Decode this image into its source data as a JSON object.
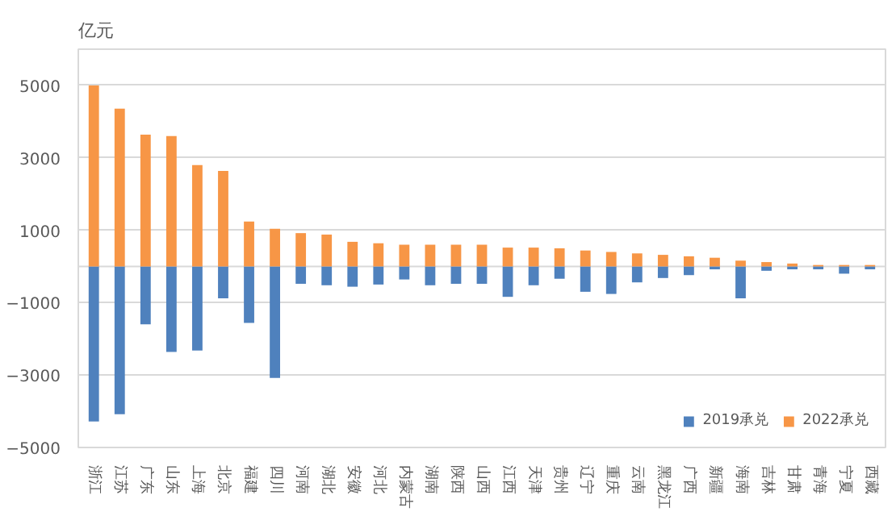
{
  "chart_data": {
    "type": "bar",
    "ylabel": "亿元",
    "categories": [
      "浙江",
      "江苏",
      "广东",
      "山东",
      "上海",
      "北京",
      "福建",
      "四川",
      "河南",
      "湖北",
      "安徽",
      "河北",
      "内蒙古",
      "湖南",
      "陕西",
      "山西",
      "江西",
      "天津",
      "贵州",
      "辽宁",
      "重庆",
      "云南",
      "黑龙江",
      "广西",
      "新疆",
      "海南",
      "吉林",
      "甘肃",
      "青海",
      "宁夏",
      "西藏"
    ],
    "series": [
      {
        "name": "2019承兑",
        "color": "#4f81bd",
        "values": [
          -4280,
          -4080,
          -1600,
          -2360,
          -2320,
          -880,
          -1560,
          -3080,
          -480,
          -520,
          -560,
          -500,
          -360,
          -520,
          -480,
          -480,
          -840,
          -520,
          -340,
          -700,
          -760,
          -440,
          -320,
          -240,
          -80,
          -880,
          -120,
          -80,
          -80,
          -200,
          -80
        ]
      },
      {
        "name": "2022承兑",
        "color": "#f79646",
        "values": [
          5000,
          4360,
          3640,
          3600,
          2800,
          2640,
          1240,
          1040,
          920,
          880,
          680,
          640,
          600,
          600,
          600,
          600,
          520,
          520,
          500,
          440,
          400,
          360,
          320,
          280,
          240,
          160,
          120,
          80,
          40,
          40,
          40
        ]
      }
    ],
    "ylim": [
      -5000,
      6000
    ],
    "yticks": [
      -5000,
      -3000,
      -1000,
      1000,
      3000,
      5000
    ],
    "grid": "y",
    "legend": "bottom right",
    "stacked": true
  }
}
